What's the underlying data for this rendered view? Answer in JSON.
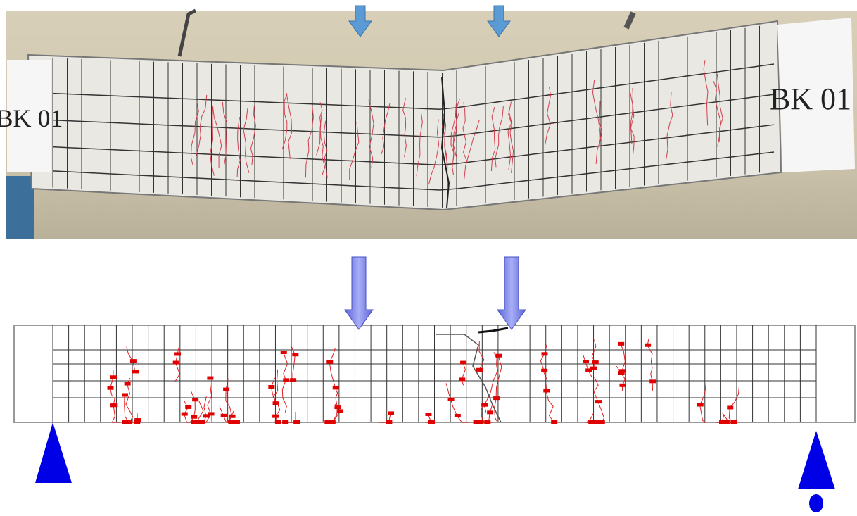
{
  "photo": {
    "labels": [
      "BK 01",
      "BK 01"
    ]
  }
}
